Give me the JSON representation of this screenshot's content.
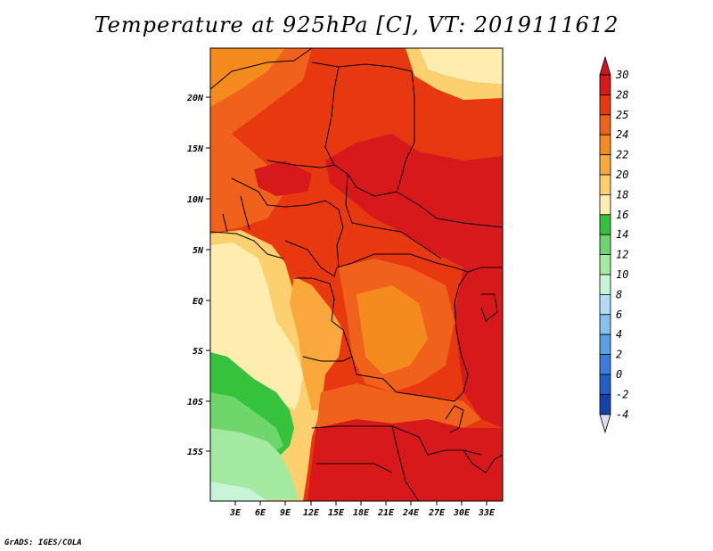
{
  "title": "Temperature at 925hPa [C], VT: 2019111612",
  "credit": "GrADS: IGES/COLA",
  "map": {
    "lat_labels": [
      "20N",
      "15N",
      "10N",
      "5N",
      "EQ",
      "5S",
      "10S",
      "15S"
    ],
    "lon_labels": [
      "3E",
      "6E",
      "9E",
      "12E",
      "15E",
      "18E",
      "21E",
      "24E",
      "27E",
      "30E",
      "33E"
    ]
  },
  "colorbar": {
    "levels": [
      "30",
      "28",
      "25",
      "24",
      "22",
      "20",
      "18",
      "16",
      "14",
      "12",
      "10",
      "8",
      "6",
      "4",
      "2",
      "0",
      "-2",
      "-4"
    ],
    "colors": [
      "#d7191c",
      "#e8380f",
      "#f0621b",
      "#f58a1f",
      "#f9a83b",
      "#fccf6f",
      "#fdeeb0",
      "#35c23d",
      "#6fd66c",
      "#a4eba1",
      "#c8f5d8",
      "#b4dcf7",
      "#86c0f0",
      "#5a9ee6",
      "#3c7ddd",
      "#2060c8",
      "#1442a8",
      "#0b2888",
      "#0a1060"
    ],
    "top_color": "#d0151a",
    "bottom_color": "#dcdcf5"
  },
  "colors": {
    "hot": "#d7191c",
    "warm": "#e8380f",
    "orange": "#f0621b",
    "light_orange": "#f58a1f",
    "amber": "#f9a83b",
    "yellow": "#fccf6f",
    "pale": "#fdeeb0",
    "green": "#35c23d",
    "light_green": "#6fd66c",
    "pale_green": "#a4eba1",
    "mint": "#c8f5d8"
  }
}
